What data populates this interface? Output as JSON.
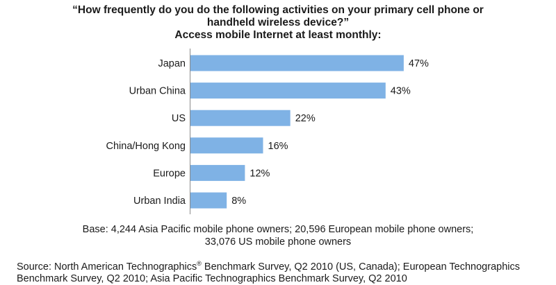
{
  "chart_data": {
    "type": "bar",
    "orientation": "horizontal",
    "title_lines": [
      "“How frequently do you do the following activities on your primary cell phone or",
      "handheld wireless device?”",
      "Access mobile Internet at least monthly:"
    ],
    "categories": [
      "Japan",
      "Urban China",
      "US",
      "China/Hong Kong",
      "Europe",
      "Urban India"
    ],
    "values": [
      47,
      43,
      22,
      16,
      12,
      8
    ],
    "value_labels": [
      "47%",
      "43%",
      "22%",
      "16%",
      "12%",
      "8%"
    ],
    "unit": "%",
    "xlim": [
      0,
      50
    ],
    "grid": false,
    "legend": "none",
    "bar_color": "#7fb2e5",
    "axis_color": "#8a8a8a"
  },
  "notes": {
    "base_lines": [
      "Base: 4,244 Asia Pacific mobile phone owners; 20,596 European mobile phone owners;",
      "33,076 US mobile phone owners"
    ],
    "source_line1_a": "Source: North American Technographics",
    "source_line1_reg": "®",
    "source_line1_b": " Benchmark Survey, Q2 2010 (US, Canada); European Technographics",
    "source_line2": "Benchmark Survey, Q2 2010; Asia Pacific Technographics Benchmark Survey, Q2 2010"
  }
}
